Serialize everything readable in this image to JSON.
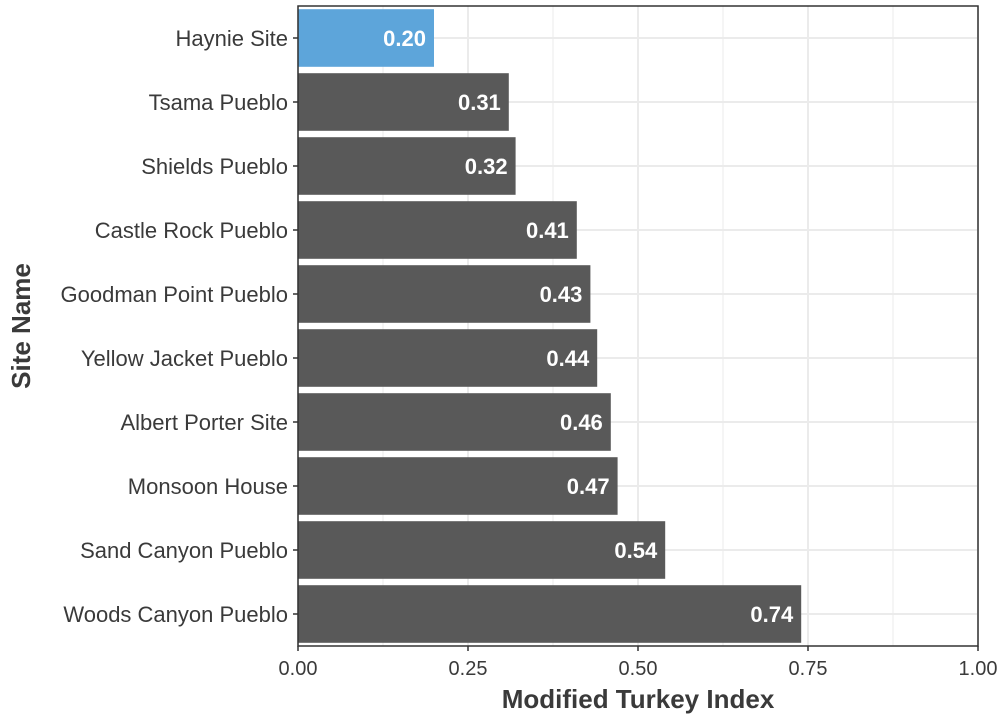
{
  "chart_data": {
    "type": "bar",
    "orientation": "horizontal",
    "xlabel": "Modified Turkey Index",
    "ylabel": "Site Name",
    "xlim": [
      0,
      1
    ],
    "xticks": [
      0,
      0.25,
      0.5,
      0.75,
      1
    ],
    "xtick_labels": [
      "0.00",
      "0.25",
      "0.50",
      "0.75",
      "1.00"
    ],
    "grid": true,
    "bars": [
      {
        "category": "Haynie Site",
        "value": 0.2,
        "label": "0.20",
        "highlight": true
      },
      {
        "category": "Tsama Pueblo",
        "value": 0.31,
        "label": "0.31",
        "highlight": false
      },
      {
        "category": "Shields Pueblo",
        "value": 0.32,
        "label": "0.32",
        "highlight": false
      },
      {
        "category": "Castle Rock Pueblo",
        "value": 0.41,
        "label": "0.41",
        "highlight": false
      },
      {
        "category": "Goodman Point Pueblo",
        "value": 0.43,
        "label": "0.43",
        "highlight": false
      },
      {
        "category": "Yellow Jacket Pueblo",
        "value": 0.44,
        "label": "0.44",
        "highlight": false
      },
      {
        "category": "Albert Porter Site",
        "value": 0.46,
        "label": "0.46",
        "highlight": false
      },
      {
        "category": "Monsoon House",
        "value": 0.47,
        "label": "0.47",
        "highlight": false
      },
      {
        "category": "Sand Canyon Pueblo",
        "value": 0.54,
        "label": "0.54",
        "highlight": false
      },
      {
        "category": "Woods Canyon Pueblo",
        "value": 0.74,
        "label": "0.74",
        "highlight": false
      }
    ],
    "colors": {
      "highlight": "#5DA5DA",
      "default": "#595959",
      "grid": "#ebebeb",
      "panel_border": "#333333"
    }
  }
}
